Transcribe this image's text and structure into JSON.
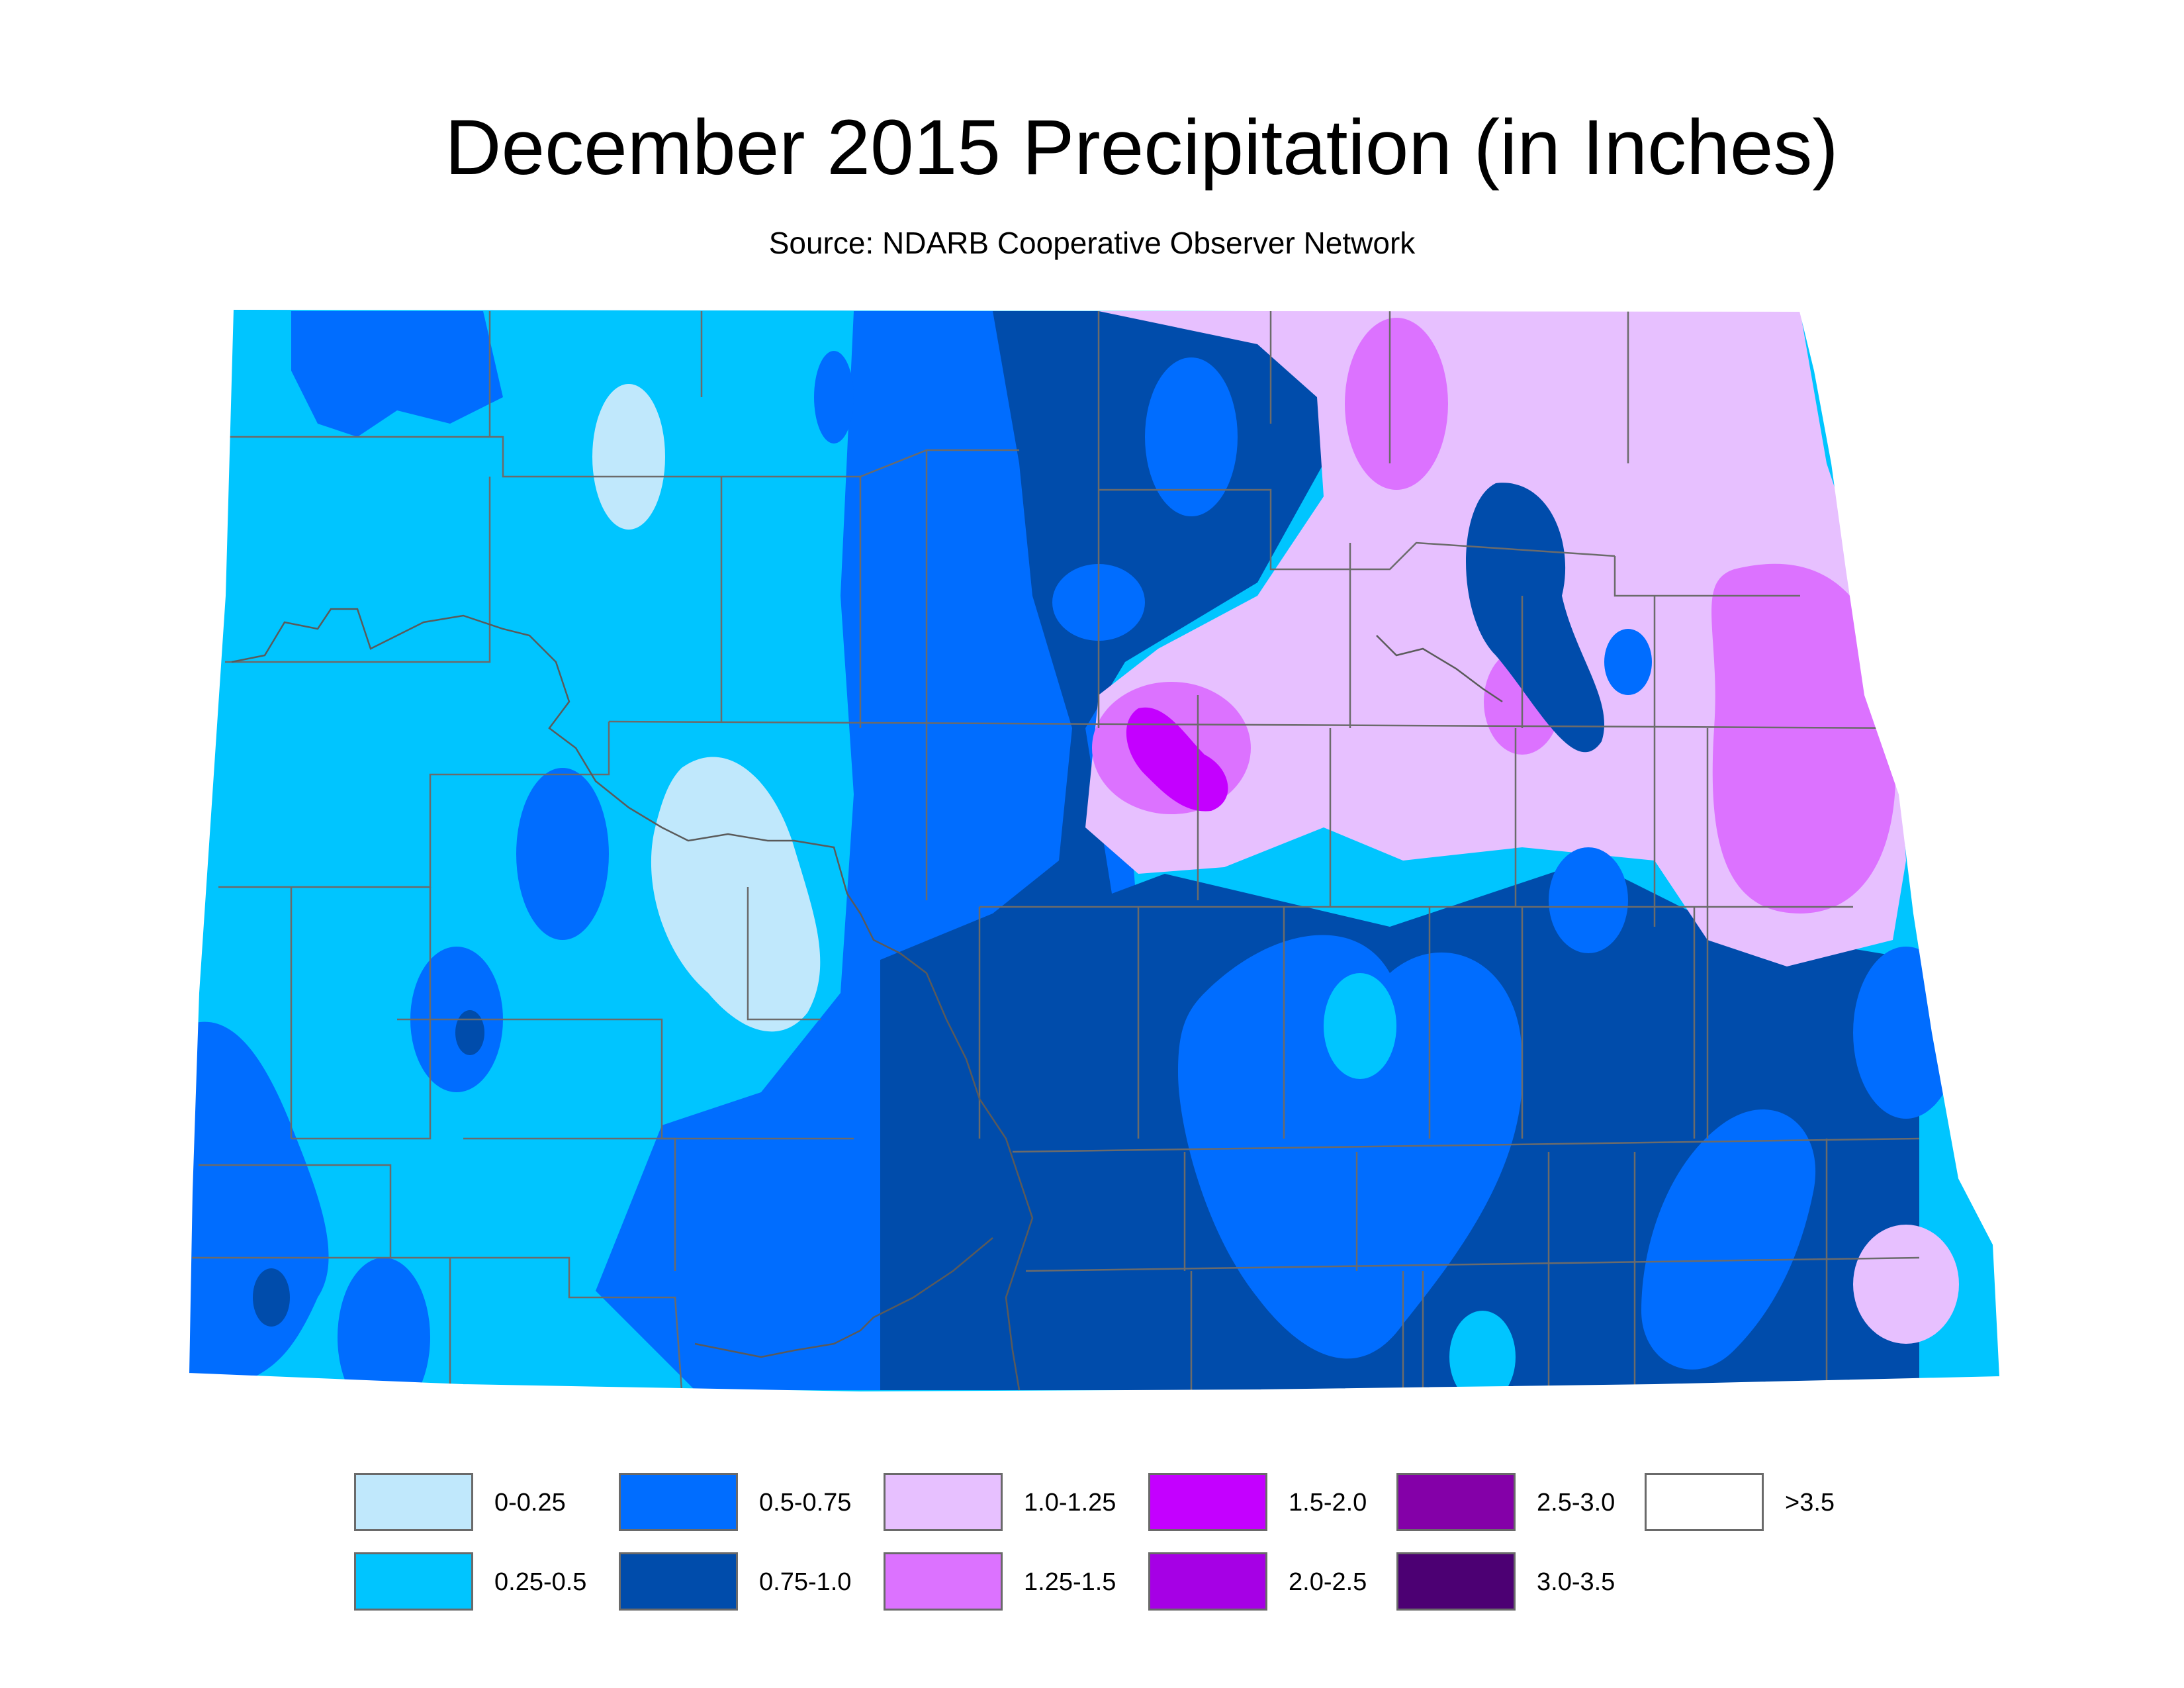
{
  "title": "December 2015 Precipitation (in Inches)",
  "subtitle": "Source: NDARB Cooperative Observer Network",
  "legend": [
    {
      "label": "0-0.25",
      "color": "#c0e8fc"
    },
    {
      "label": "0.25-0.5",
      "color": "#00c5ff"
    },
    {
      "label": "0.5-0.75",
      "color": "#006dff"
    },
    {
      "label": "0.75-1.0",
      "color": "#004cab"
    },
    {
      "label": "1.0-1.25",
      "color": "#e7c0ff"
    },
    {
      "label": "1.25-1.5",
      "color": "#dc72ff"
    },
    {
      "label": "1.5-2.0",
      "color": "#c400ff"
    },
    {
      "label": "2.0-2.5",
      "color": "#a600e5"
    },
    {
      "label": "2.5-3.0",
      "color": "#8400a8"
    },
    {
      "label": "3.0-3.5",
      "color": "#4c0073"
    },
    {
      "label": ">3.5",
      "color": "#ffffff"
    }
  ]
}
